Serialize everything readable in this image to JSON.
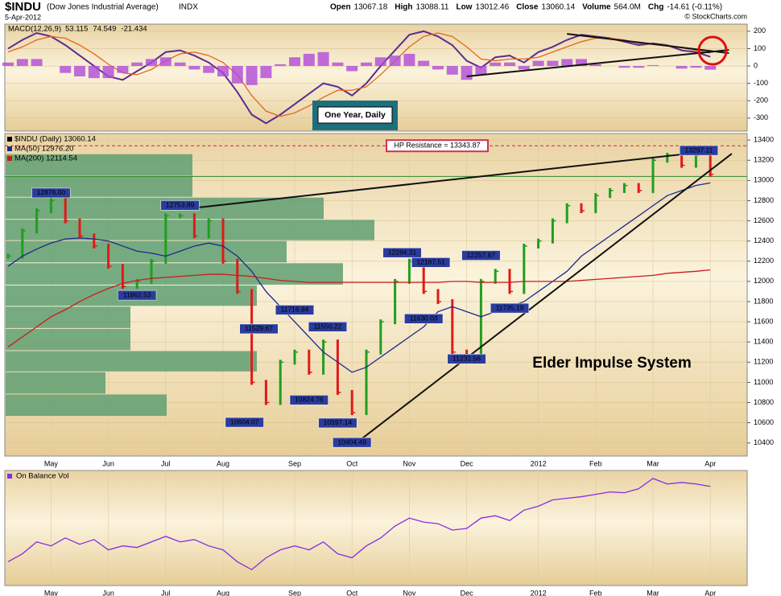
{
  "header": {
    "symbol": "$INDU",
    "name": "(Dow Jones Industrial Average)",
    "exchange": "INDX",
    "date": "5-Apr-2012",
    "watermark": "© StockCharts.com",
    "quote": [
      {
        "label": "Open",
        "value": "13067.18"
      },
      {
        "label": "High",
        "value": "13088.11"
      },
      {
        "label": "Low",
        "value": "13012.46"
      },
      {
        "label": "Close",
        "value": "13060.14"
      },
      {
        "label": "Volume",
        "value": "564.0M"
      },
      {
        "label": "Chg",
        "value": "-14.61 (-0.11%)"
      }
    ]
  },
  "chart_data": [
    {
      "type": "macd",
      "title": "MACD(12,26,9)",
      "annotation": "One Year, Daily",
      "ylim": [
        -375,
        241
      ],
      "yticks": [
        -300,
        -200,
        -100,
        0,
        100,
        200
      ],
      "grid": true,
      "series": [
        {
          "name": "53.115",
          "color": "#5b2c8f",
          "style": "line",
          "values": [
            100,
            150,
            190,
            170,
            120,
            60,
            0,
            -60,
            -80,
            -30,
            20,
            80,
            90,
            60,
            20,
            -40,
            -150,
            -280,
            -330,
            -280,
            -220,
            -160,
            -100,
            -120,
            -170,
            -100,
            0,
            90,
            180,
            200,
            170,
            120,
            30,
            -10,
            50,
            60,
            20,
            80,
            110,
            150,
            180,
            170,
            160,
            140,
            120,
            130,
            120,
            90,
            80,
            53.115
          ]
        },
        {
          "name": "74.549",
          "color": "#e8651e",
          "style": "line",
          "values": [
            80,
            110,
            150,
            170,
            160,
            120,
            70,
            10,
            -40,
            -50,
            -20,
            30,
            70,
            80,
            60,
            20,
            -50,
            -170,
            -260,
            -290,
            -270,
            -230,
            -180,
            -140,
            -140,
            -120,
            -50,
            30,
            110,
            170,
            190,
            170,
            110,
            40,
            30,
            40,
            40,
            50,
            80,
            110,
            140,
            160,
            160,
            150,
            130,
            125,
            120,
            105,
            90,
            74.549
          ]
        },
        {
          "name": "-21.434",
          "color": "#b04ad8",
          "style": "histogram",
          "values": [
            20,
            40,
            40,
            0,
            -40,
            -60,
            -70,
            -70,
            -40,
            20,
            40,
            50,
            20,
            -20,
            -40,
            -60,
            -100,
            -110,
            -70,
            10,
            50,
            70,
            80,
            20,
            -30,
            20,
            50,
            60,
            70,
            30,
            -20,
            -50,
            -80,
            -50,
            20,
            20,
            -20,
            30,
            30,
            40,
            40,
            10,
            0,
            -10,
            -10,
            5,
            0,
            -15,
            -10,
            -21.434
          ]
        }
      ],
      "trendlines": [
        {
          "x": [
            32,
            50.3
          ],
          "y": [
            -60,
            92
          ]
        },
        {
          "x": [
            39,
            50.3
          ],
          "y": [
            185,
            74
          ]
        }
      ]
    },
    {
      "type": "impulse",
      "annotation": "Elder Impulse System",
      "categories": [
        null,
        null,
        null,
        "May",
        null,
        null,
        null,
        "Jun",
        null,
        null,
        null,
        "Jul",
        null,
        null,
        null,
        "Aug",
        null,
        null,
        null,
        null,
        "Sep",
        null,
        null,
        null,
        "Oct",
        null,
        null,
        null,
        "Nov",
        null,
        null,
        null,
        "Dec",
        null,
        null,
        null,
        null,
        "2012",
        null,
        null,
        null,
        "Feb",
        null,
        null,
        null,
        "Mar",
        null,
        null,
        null,
        "Apr"
      ],
      "ylim": [
        10270,
        13465
      ],
      "yticks": [
        10400,
        10600,
        10800,
        11000,
        11200,
        11400,
        11600,
        11800,
        12000,
        12200,
        12400,
        12600,
        12800,
        13000,
        13200,
        13400
      ],
      "grid": true,
      "colors": {
        "up": "#1f9e1f",
        "down": "#e01a1a"
      },
      "series": [
        {
          "name": "$INDU (Daily) 13060.14",
          "color": "#000000",
          "values": [
            12250,
            12500,
            12700,
            12800,
            12600,
            12450,
            12350,
            12150,
            11950,
            12000,
            12200,
            12650,
            12650,
            12450,
            12600,
            12200,
            11900,
            11000,
            10800,
            11200,
            11300,
            11100,
            11400,
            10900,
            10700,
            11300,
            11600,
            12000,
            12200,
            11900,
            11800,
            11300,
            11250,
            12000,
            12100,
            11900,
            12350,
            12400,
            12600,
            12750,
            12700,
            12850,
            12900,
            12950,
            12900,
            13200,
            13250,
            13150,
            13250,
            13060.14
          ]
        },
        {
          "name": "MA(50) 12976.20",
          "color": "#1c2a8c",
          "values": [
            12150,
            12250,
            12320,
            12380,
            12420,
            12430,
            12420,
            12400,
            12350,
            12300,
            12280,
            12250,
            12300,
            12350,
            12380,
            12350,
            12250,
            12100,
            11900,
            11750,
            11600,
            11450,
            11300,
            11200,
            11100,
            11150,
            11250,
            11350,
            11450,
            11550,
            11700,
            11750,
            11700,
            11650,
            11700,
            11750,
            11800,
            11900,
            12000,
            12100,
            12250,
            12350,
            12450,
            12550,
            12650,
            12750,
            12850,
            12900,
            12950,
            12976.2
          ]
        },
        {
          "name": "MA(200) 12114.54",
          "color": "#cc1a1a",
          "values": [
            11350,
            11450,
            11550,
            11650,
            11720,
            11800,
            11870,
            11930,
            11980,
            12010,
            12030,
            12040,
            12050,
            12060,
            12070,
            12070,
            12060,
            12050,
            12030,
            12010,
            12000,
            11990,
            11990,
            11990,
            11990,
            11990,
            11990,
            11990,
            11990,
            11990,
            11990,
            12000,
            12000,
            11990,
            11990,
            11990,
            12000,
            12000,
            12000,
            12000,
            12010,
            12020,
            12030,
            12040,
            12050,
            12060,
            12080,
            12090,
            12100,
            12114.54
          ]
        }
      ],
      "volume_by_price": {
        "color": "#5f9f72",
        "bins": [
          10660,
          10880,
          11100,
          11310,
          11530,
          11750,
          11960,
          12180,
          12400,
          12610,
          12830,
          13040,
          13260
        ],
        "values": [
          200,
          124,
          312,
          155,
          155,
          312,
          419,
          349,
          458,
          395,
          232,
          232
        ]
      },
      "hlines": [
        {
          "label": "HP Resistance = 13343.87",
          "value": 13343.87,
          "color": "#dd2222",
          "dash": true
        },
        {
          "value": 13040,
          "color": "#2a8a2a",
          "dash": false
        }
      ],
      "trendlines": [
        {
          "x": [
            13.3,
            49.5
          ],
          "y": [
            12733,
            13297
          ]
        },
        {
          "x": [
            24.3,
            50.5
          ],
          "y": [
            10400,
            13265
          ]
        }
      ],
      "point_labels": [
        {
          "x": 3,
          "value": 12876,
          "label": "12876.00"
        },
        {
          "x": 12,
          "value": 12753.89,
          "label": "12753.89"
        },
        {
          "x": 9,
          "value": 11862.53,
          "label": "11862.53"
        },
        {
          "x": 27.5,
          "value": 12284.31,
          "label": "12284.31"
        },
        {
          "x": 29.5,
          "value": 12187.51,
          "label": "12187.51"
        },
        {
          "x": 33,
          "value": 12257.67,
          "label": "12257.67"
        },
        {
          "x": 20,
          "value": 11716.84,
          "label": "11716.84"
        },
        {
          "x": 17.5,
          "value": 11529.67,
          "label": "11529.67"
        },
        {
          "x": 22.3,
          "value": 11550.22,
          "label": "11550.22"
        },
        {
          "x": 29,
          "value": 11630.03,
          "label": "11630.03"
        },
        {
          "x": 16.5,
          "value": 10604.07,
          "label": "10604.07"
        },
        {
          "x": 21,
          "value": 10824.76,
          "label": "10824.76"
        },
        {
          "x": 23,
          "value": 10597.14,
          "label": "10597.14"
        },
        {
          "x": 24,
          "value": 10404.49,
          "label": "10404.49"
        },
        {
          "x": 32,
          "value": 11231.56,
          "label": "11231.56"
        },
        {
          "x": 35,
          "value": 11735.19,
          "label": "11735.19"
        },
        {
          "x": 48.2,
          "value": 13297.11,
          "label": "13297.11"
        }
      ]
    },
    {
      "type": "line",
      "title": "On Balance Vol",
      "categories": [
        null,
        null,
        null,
        "May",
        null,
        null,
        null,
        "Jun",
        null,
        null,
        null,
        "Jul",
        null,
        null,
        null,
        "Aug",
        null,
        null,
        null,
        null,
        "Sep",
        null,
        null,
        null,
        "Oct",
        null,
        null,
        null,
        "Nov",
        null,
        null,
        null,
        "Dec",
        null,
        null,
        null,
        null,
        "2012",
        null,
        null,
        null,
        "Feb",
        null,
        null,
        null,
        "Mar",
        null,
        null,
        null,
        "Apr"
      ],
      "ylim": [
        0,
        145
      ],
      "grid": true,
      "series": [
        {
          "name": "On Balance Vol",
          "color": "#8a2be2",
          "values": [
            30,
            40,
            55,
            50,
            60,
            52,
            58,
            45,
            50,
            48,
            55,
            62,
            55,
            58,
            50,
            45,
            30,
            20,
            35,
            45,
            50,
            45,
            55,
            40,
            35,
            50,
            60,
            75,
            85,
            80,
            78,
            70,
            72,
            85,
            88,
            82,
            95,
            100,
            108,
            110,
            112,
            115,
            118,
            117,
            122,
            135,
            128,
            130,
            128,
            125
          ]
        }
      ]
    }
  ]
}
